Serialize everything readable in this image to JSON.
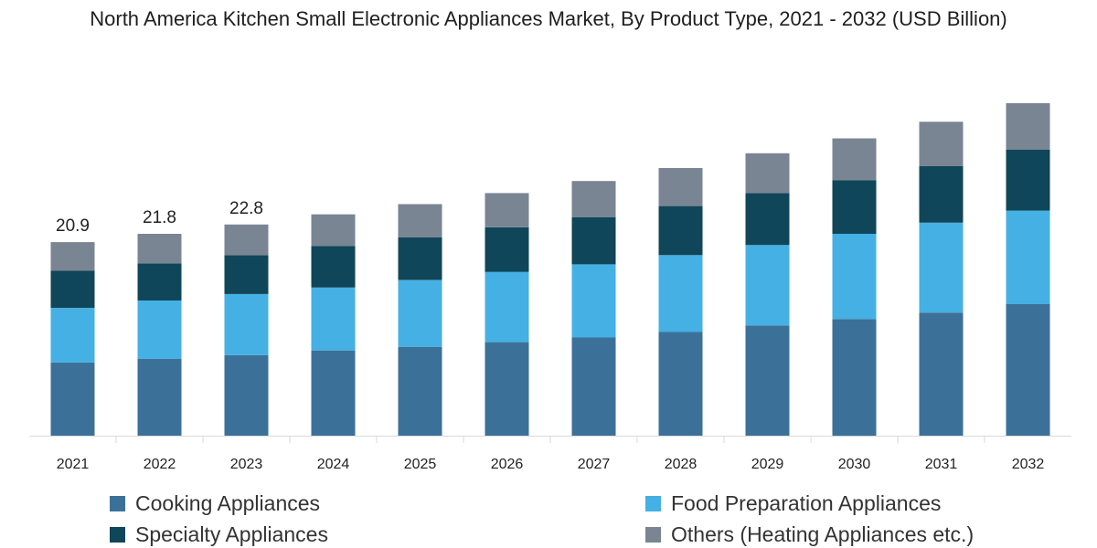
{
  "chart_data": {
    "type": "bar",
    "stacked": true,
    "title": "North America Kitchen Small Electronic Appliances Market, By Product Type, 2021 - 2032 (USD Billion)",
    "xlabel": "",
    "ylabel": "",
    "ylim": [
      0,
      38
    ],
    "grid": false,
    "legend_position": "bottom",
    "categories": [
      "2021",
      "2022",
      "2023",
      "2024",
      "2025",
      "2026",
      "2027",
      "2028",
      "2029",
      "2030",
      "2031",
      "2032"
    ],
    "series": [
      {
        "name": "Cooking Appliances",
        "color": "#3b7199",
        "values": [
          7.9,
          8.3,
          8.7,
          9.2,
          9.6,
          10.1,
          10.6,
          11.2,
          11.9,
          12.6,
          13.3,
          14.2
        ]
      },
      {
        "name": "Food Preparation Appliances",
        "color": "#45b0e3",
        "values": [
          5.9,
          6.3,
          6.6,
          6.8,
          7.2,
          7.6,
          7.9,
          8.3,
          8.7,
          9.2,
          9.7,
          10.1
        ]
      },
      {
        "name": "Specialty Appliances",
        "color": "#0f4659",
        "values": [
          4.0,
          4.0,
          4.2,
          4.5,
          4.6,
          4.8,
          5.1,
          5.3,
          5.6,
          5.8,
          6.1,
          6.6
        ]
      },
      {
        "name": "Others (Heating Appliances etc.)",
        "color": "#7a8593",
        "values": [
          3.1,
          3.2,
          3.3,
          3.4,
          3.6,
          3.7,
          3.9,
          4.1,
          4.3,
          4.5,
          4.8,
          5.0
        ]
      }
    ],
    "data_labels": [
      {
        "category": "2021",
        "text": "20.9"
      },
      {
        "category": "2022",
        "text": "21.8"
      },
      {
        "category": "2023",
        "text": "22.8"
      }
    ]
  }
}
